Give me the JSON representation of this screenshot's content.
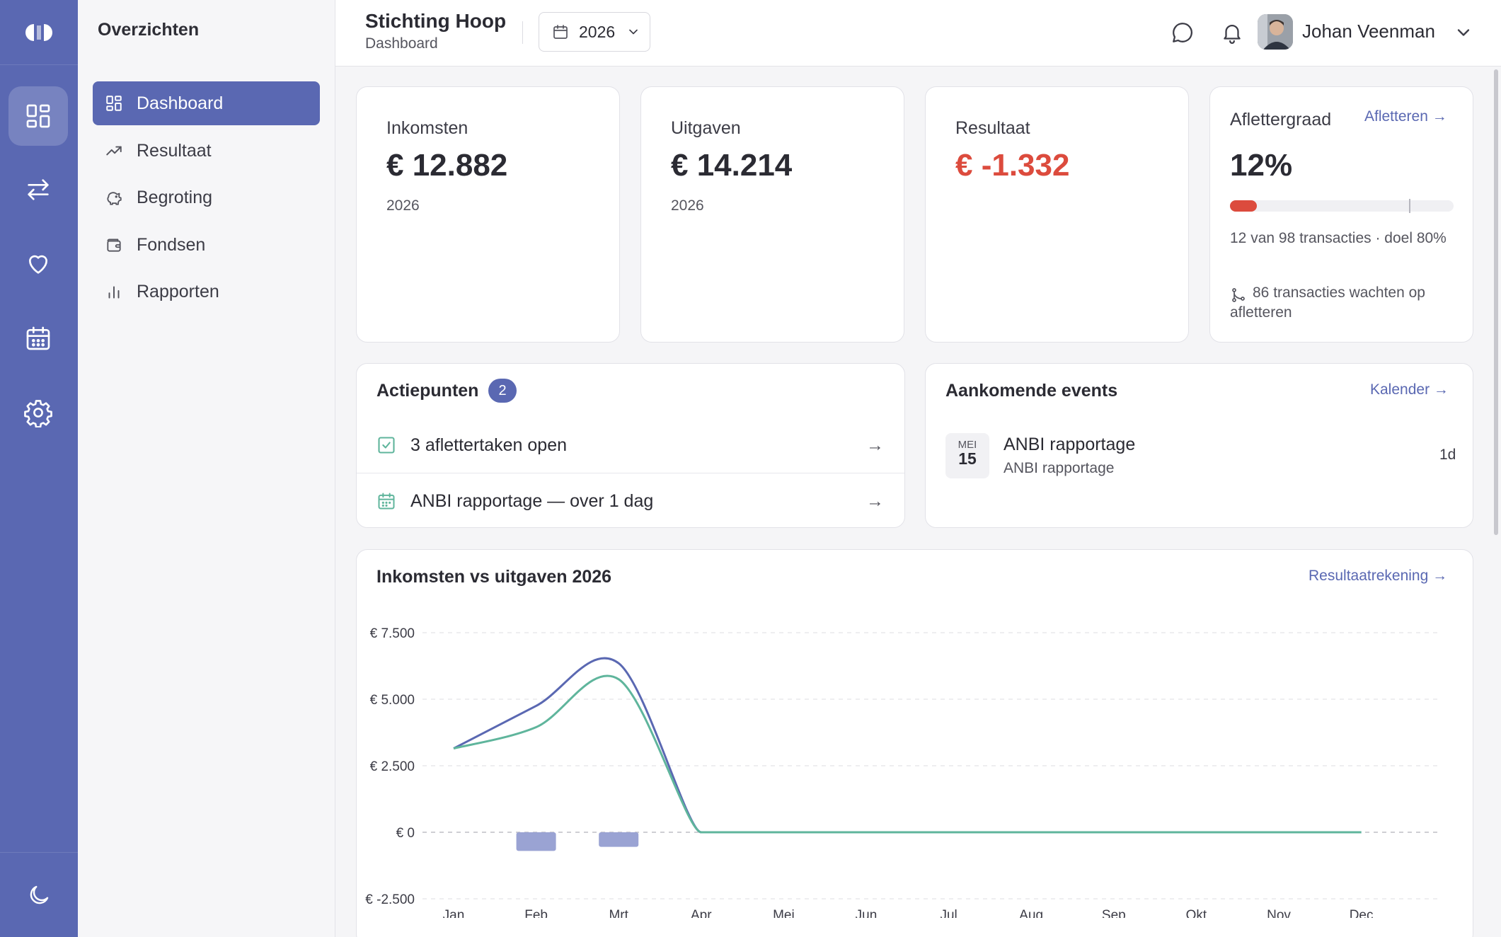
{
  "rail": {
    "icons": [
      "logo-icon",
      "dashboard-icon",
      "transactions-icon",
      "heart-icon",
      "calendar-icon",
      "gear-icon",
      "moon-icon"
    ]
  },
  "sidebar": {
    "title": "Overzichten",
    "items": [
      {
        "label": "Dashboard",
        "icon": "dashboard-icon",
        "active": true
      },
      {
        "label": "Resultaat",
        "icon": "trend-up-icon"
      },
      {
        "label": "Begroting",
        "icon": "piggy-bank-icon"
      },
      {
        "label": "Fondsen",
        "icon": "wallet-icon"
      },
      {
        "label": "Rapporten",
        "icon": "bar-chart-icon"
      }
    ]
  },
  "header": {
    "org_name": "Stichting Hoop",
    "page": "Dashboard",
    "year": "2026",
    "user_name": "Johan Veenman"
  },
  "stats": {
    "income": {
      "label": "Inkomsten",
      "value": "€ 12.882",
      "year": "2026"
    },
    "expenses": {
      "label": "Uitgaven",
      "value": "€ 14.214",
      "year": "2026"
    },
    "result": {
      "label": "Resultaat",
      "value": "€ -1.332"
    },
    "reconcile": {
      "label": "Aflettergraad",
      "link": "Afletteren →",
      "value": "12%",
      "progress_percent": 12,
      "goal_percent": 80,
      "detail": "12 van 98 transacties · doel 80%",
      "pending": "86 transacties wachten op afletteren"
    }
  },
  "actions": {
    "title": "Actiepunten",
    "count": "2",
    "items": [
      {
        "label": "3 aflettertaken open",
        "icon": "check-square-icon",
        "arrow": "→"
      },
      {
        "label": "ANBI rapportage — over 1 dag",
        "icon": "calendar-icon",
        "arrow": "→"
      }
    ]
  },
  "events": {
    "title": "Aankomende events",
    "link": "Kalender →",
    "items": [
      {
        "month": "MEI",
        "day": "15",
        "title": "ANBI rapportage",
        "subtitle": "ANBI rapportage",
        "days_left": "1d"
      }
    ]
  },
  "chart_section": {
    "title": "Inkomsten vs uitgaven 2026",
    "link": "Resultaatrekening →"
  },
  "chart_data": {
    "type": "line",
    "categories": [
      "Jan",
      "Feb",
      "Mrt",
      "Apr",
      "Mei",
      "Jun",
      "Jul",
      "Aug",
      "Sep",
      "Okt",
      "Nov",
      "Dec"
    ],
    "series": [
      {
        "kind": "line",
        "color": "#5a68b2",
        "values": [
          3150,
          4750,
          6350,
          0,
          0,
          0,
          0,
          0,
          0,
          0,
          0,
          0
        ]
      },
      {
        "kind": "line",
        "color": "#5fb59c",
        "values": [
          3150,
          3950,
          5750,
          0,
          0,
          0,
          0,
          0,
          0,
          0,
          0,
          0
        ]
      },
      {
        "kind": "bar",
        "color": "#9aa3d3",
        "values": [
          0,
          -700,
          -550,
          0,
          0,
          0,
          0,
          0,
          0,
          0,
          0,
          0
        ]
      }
    ],
    "yticks": [
      7500,
      5000,
      2500,
      0,
      -2500
    ],
    "ytick_labels": [
      "€ 7.500",
      "€ 5.000",
      "€ 2.500",
      "€ 0",
      "€ -2.500"
    ],
    "ylim": [
      -2500,
      7500
    ],
    "grid": true
  }
}
